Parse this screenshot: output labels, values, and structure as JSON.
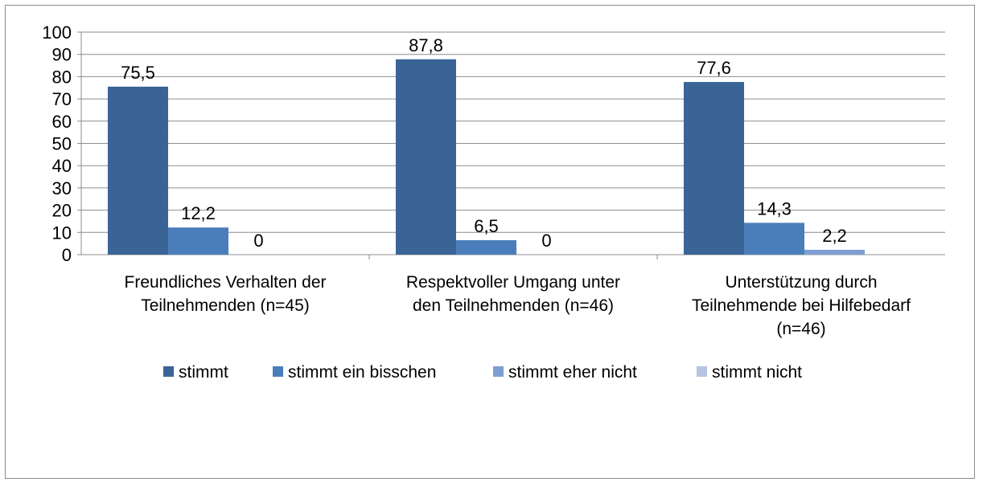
{
  "chart_data": {
    "type": "bar",
    "categories": [
      [
        "Freundliches Verhalten der",
        "Teilnehmenden (n=45)"
      ],
      [
        "Respektvoller Umgang unter",
        "den Teilnehmenden (n=46)"
      ],
      [
        "Unterstützung durch",
        "Teilnehmende bei Hilfebedarf",
        "(n=46)"
      ]
    ],
    "series": [
      {
        "name": "stimmt",
        "color": "#3a6496",
        "values": [
          75.5,
          87.8,
          77.6
        ],
        "labels": [
          "75,5",
          "87,8",
          "77,6"
        ]
      },
      {
        "name": "stimmt ein bisschen",
        "color": "#4a7ebb",
        "values": [
          12.2,
          6.5,
          14.3
        ],
        "labels": [
          "12,2",
          "6,5",
          "14,3"
        ]
      },
      {
        "name": "stimmt eher nicht",
        "color": "#7e9fd3",
        "values": [
          0,
          0,
          2.2
        ],
        "labels": [
          "0",
          "0",
          "2,2"
        ]
      },
      {
        "name": "stimmt nicht",
        "color": "#b5c4e3",
        "values": [
          null,
          null,
          null
        ],
        "labels": [
          null,
          null,
          null
        ]
      }
    ],
    "y_ticks": [
      "0",
      "10",
      "20",
      "30",
      "40",
      "50",
      "60",
      "70",
      "80",
      "90",
      "100"
    ],
    "ylim": [
      0,
      100
    ],
    "grid": true,
    "legend": "bottom",
    "title": "",
    "xlabel": "",
    "ylabel": ""
  }
}
